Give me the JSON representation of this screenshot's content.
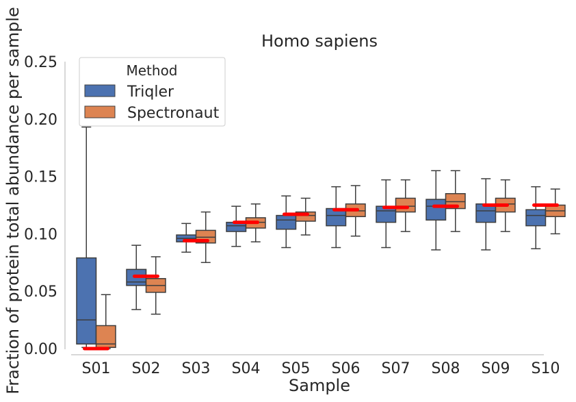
{
  "colors": {
    "Triqler": "#4c72b0",
    "Spectronaut": "#dd8452",
    "median_line": "#3d3d3d",
    "whisker": "#3d3d3d",
    "reference": "#ff0000",
    "axis": "#cccccc",
    "text": "#262626"
  },
  "chart_data": {
    "type": "box",
    "title": "Homo sapiens",
    "xlabel": "Sample",
    "ylabel": "Fraction of protein total abundance per sample",
    "ylim": [
      0.0,
      0.25
    ],
    "yticks": [
      "0.00",
      "0.05",
      "0.10",
      "0.15",
      "0.20",
      "0.25"
    ],
    "categories": [
      "S01",
      "S02",
      "S03",
      "S04",
      "S05",
      "S06",
      "S07",
      "S08",
      "S09",
      "S10"
    ],
    "legend": {
      "title": "Method",
      "position": "top-left",
      "entries": [
        "Triqler",
        "Spectronaut"
      ]
    },
    "grid": false,
    "series": [
      {
        "name": "Triqler",
        "boxes": [
          {
            "low": 0.001,
            "q1": 0.004,
            "median": 0.025,
            "q3": 0.079,
            "high": 0.193
          },
          {
            "low": 0.034,
            "q1": 0.055,
            "median": 0.058,
            "q3": 0.069,
            "high": 0.09
          },
          {
            "low": 0.084,
            "q1": 0.093,
            "median": 0.096,
            "q3": 0.099,
            "high": 0.109
          },
          {
            "low": 0.089,
            "q1": 0.102,
            "median": 0.107,
            "q3": 0.11,
            "high": 0.124
          },
          {
            "low": 0.088,
            "q1": 0.104,
            "median": 0.112,
            "q3": 0.116,
            "high": 0.133
          },
          {
            "low": 0.088,
            "q1": 0.107,
            "median": 0.116,
            "q3": 0.122,
            "high": 0.141
          },
          {
            "low": 0.088,
            "q1": 0.11,
            "median": 0.12,
            "q3": 0.124,
            "high": 0.147
          },
          {
            "low": 0.086,
            "q1": 0.112,
            "median": 0.124,
            "q3": 0.13,
            "high": 0.155
          },
          {
            "low": 0.086,
            "q1": 0.11,
            "median": 0.12,
            "q3": 0.126,
            "high": 0.148
          },
          {
            "low": 0.087,
            "q1": 0.107,
            "median": 0.116,
            "q3": 0.121,
            "high": 0.141
          }
        ]
      },
      {
        "name": "Spectronaut",
        "boxes": [
          {
            "low": 0.0,
            "q1": 0.001,
            "median": 0.004,
            "q3": 0.02,
            "high": 0.047
          },
          {
            "low": 0.03,
            "q1": 0.049,
            "median": 0.055,
            "q3": 0.061,
            "high": 0.08
          },
          {
            "low": 0.075,
            "q1": 0.092,
            "median": 0.097,
            "q3": 0.103,
            "high": 0.119
          },
          {
            "low": 0.093,
            "q1": 0.105,
            "median": 0.11,
            "q3": 0.114,
            "high": 0.126
          },
          {
            "low": 0.099,
            "q1": 0.111,
            "median": 0.116,
            "q3": 0.119,
            "high": 0.131
          },
          {
            "low": 0.098,
            "q1": 0.115,
            "median": 0.12,
            "q3": 0.126,
            "high": 0.142
          },
          {
            "low": 0.102,
            "q1": 0.119,
            "median": 0.124,
            "q3": 0.131,
            "high": 0.147
          },
          {
            "low": 0.102,
            "q1": 0.122,
            "median": 0.128,
            "q3": 0.135,
            "high": 0.155
          },
          {
            "low": 0.102,
            "q1": 0.119,
            "median": 0.126,
            "q3": 0.131,
            "high": 0.147
          },
          {
            "low": 0.1,
            "q1": 0.115,
            "median": 0.12,
            "q3": 0.125,
            "high": 0.139
          }
        ]
      }
    ],
    "reference_values": [
      0.0,
      0.063,
      0.094,
      0.11,
      0.117,
      0.121,
      0.123,
      0.124,
      0.125,
      0.125
    ]
  }
}
